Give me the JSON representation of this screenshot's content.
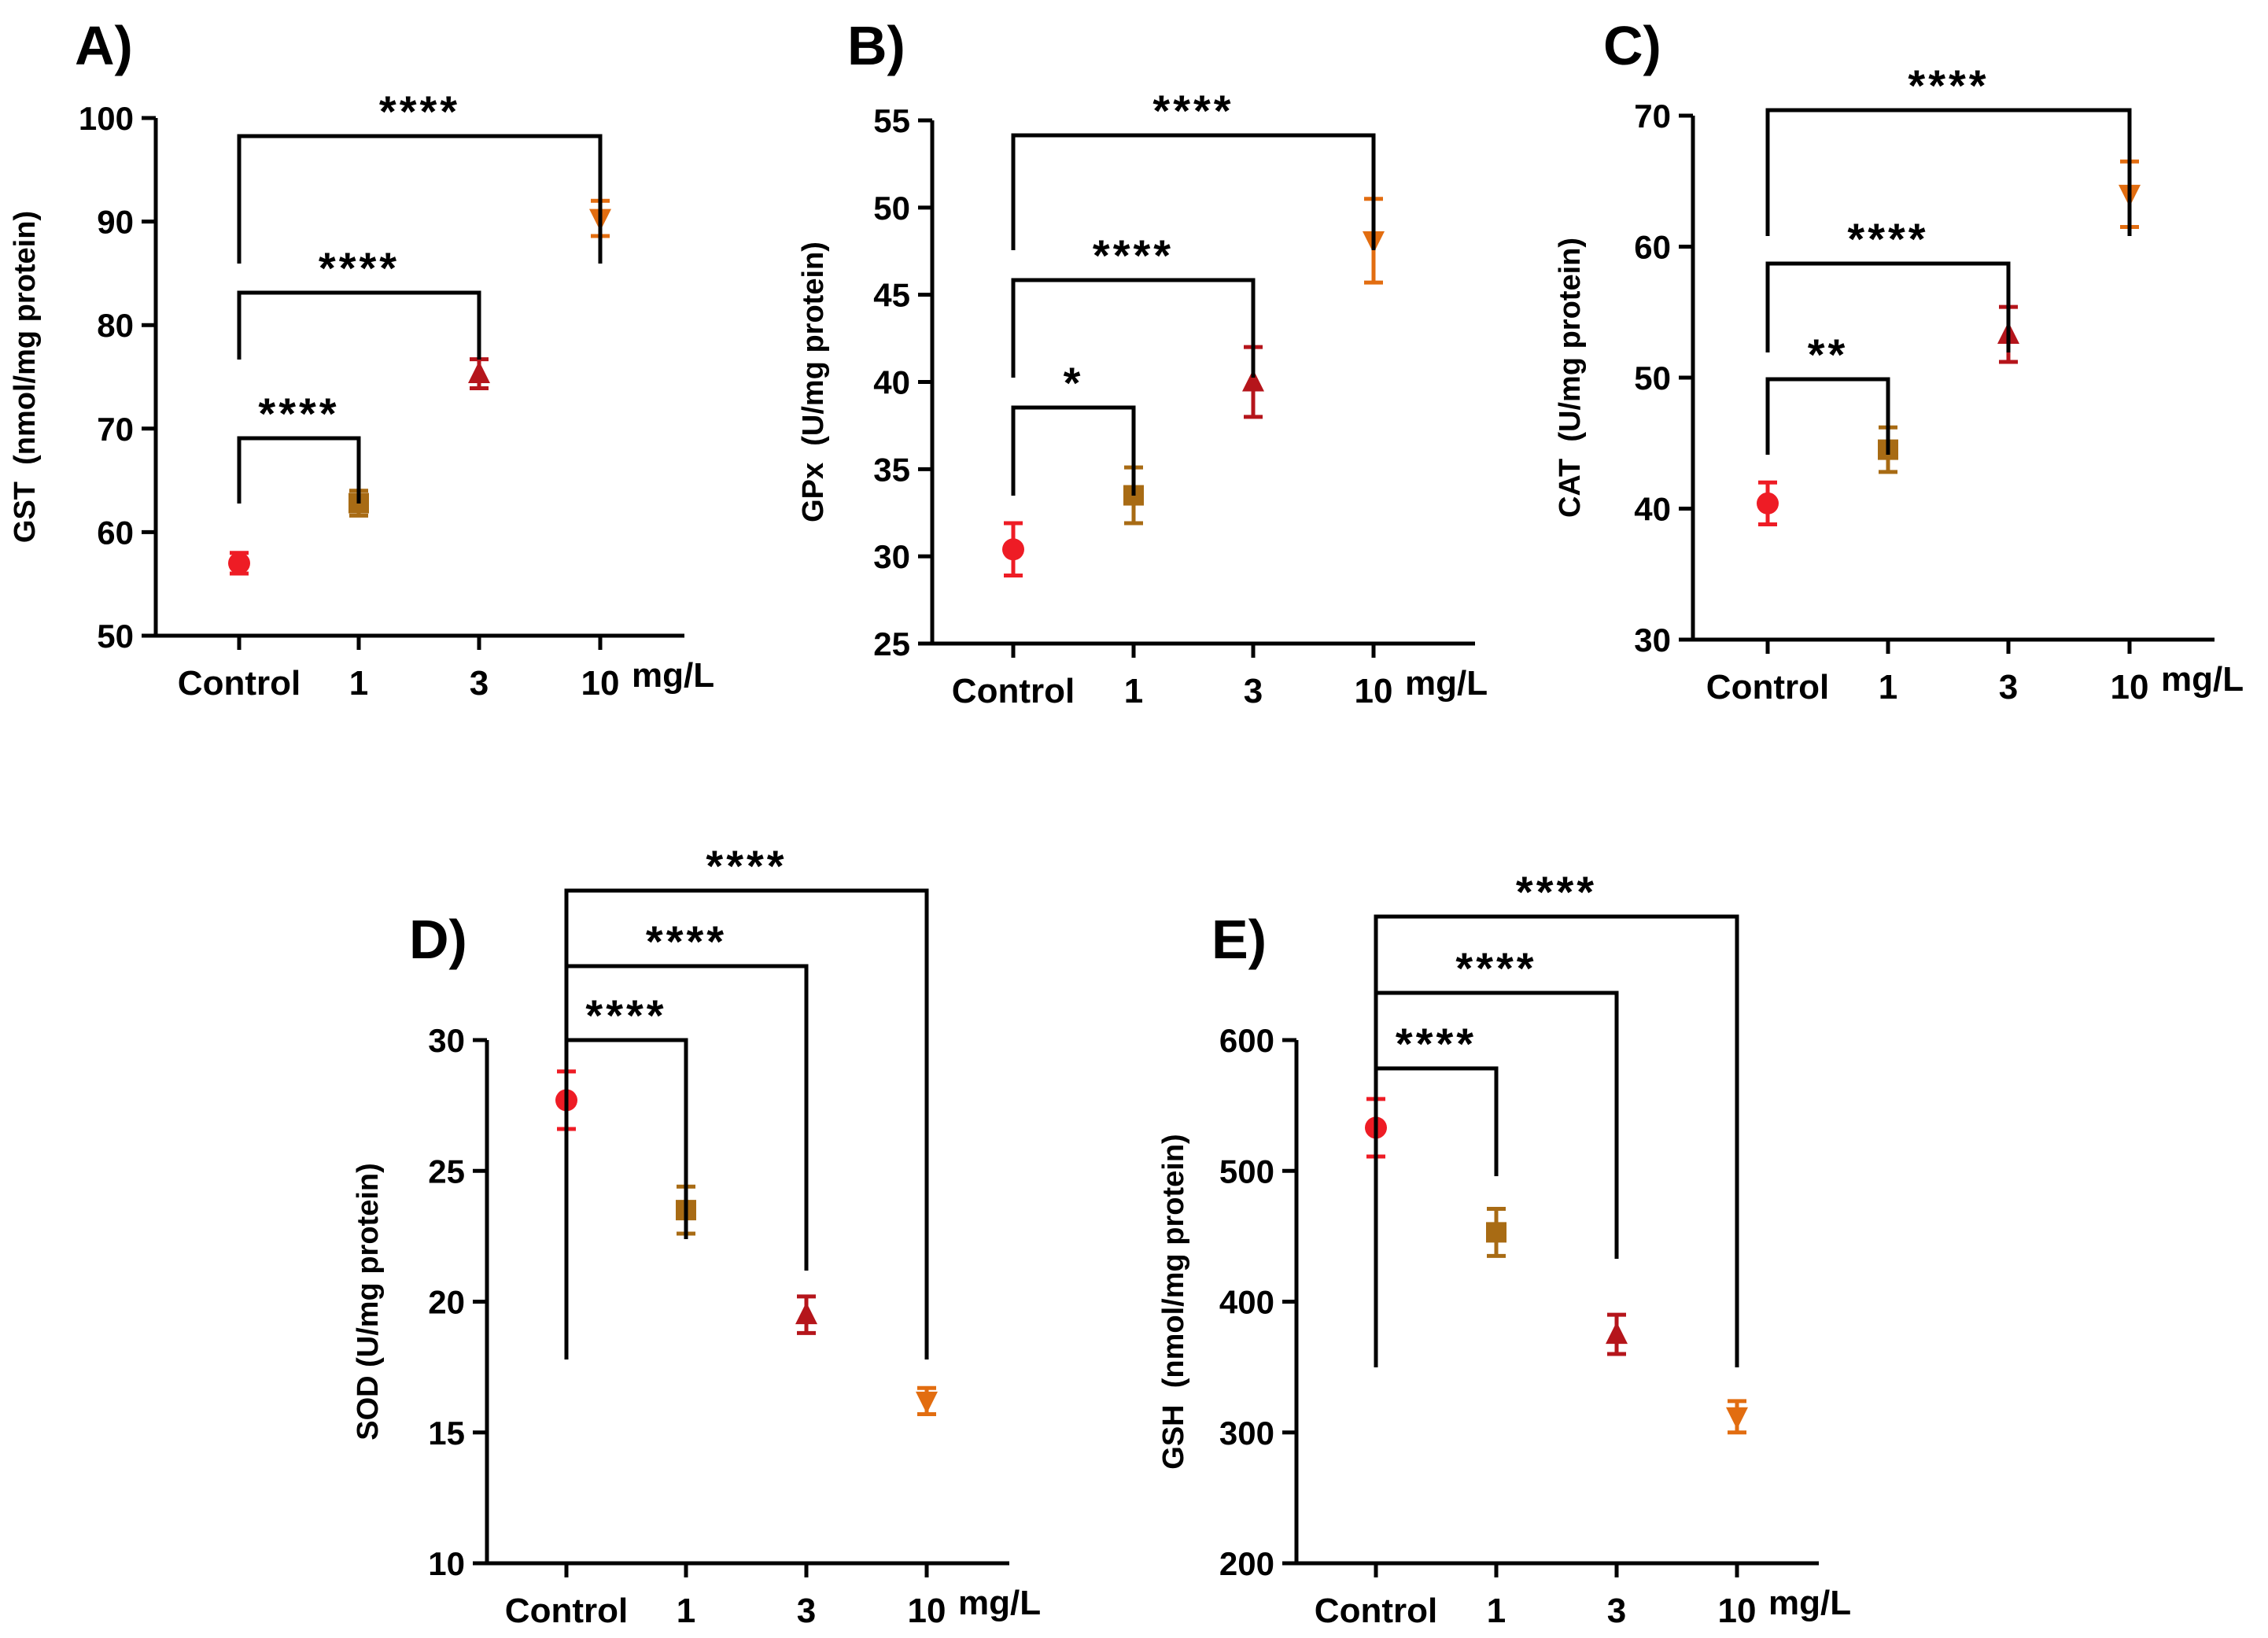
{
  "chart_data": [
    {
      "id": "A",
      "panel_label": "A)",
      "type": "scatter",
      "title": "",
      "ylabel": "GST  (nmol/mg protein)",
      "xlabel": "",
      "x_unit": "mg/L",
      "categories": [
        "Control",
        "1",
        "3",
        "10"
      ],
      "ylim": [
        50,
        100
      ],
      "yticks": [
        50,
        60,
        70,
        80,
        90,
        100
      ],
      "series": [
        {
          "name": "GST",
          "values": [
            57.0,
            62.8,
            75.3,
            90.3
          ],
          "errors": [
            1.0,
            1.2,
            1.4,
            1.7
          ]
        }
      ],
      "significance": [
        {
          "from": "Control",
          "to": "1",
          "label": "****"
        },
        {
          "from": "Control",
          "to": "3",
          "label": "****"
        },
        {
          "from": "Control",
          "to": "10",
          "label": "****"
        }
      ]
    },
    {
      "id": "B",
      "panel_label": "B)",
      "type": "scatter",
      "title": "",
      "ylabel": "GPx  (U/mg protein)",
      "xlabel": "",
      "x_unit": "mg/L",
      "categories": [
        "Control",
        "1",
        "3",
        "10"
      ],
      "ylim": [
        25,
        55
      ],
      "yticks": [
        25,
        30,
        35,
        40,
        45,
        50,
        55
      ],
      "series": [
        {
          "name": "GPx",
          "values": [
            30.4,
            33.5,
            40.0,
            48.1
          ],
          "errors": [
            1.5,
            1.6,
            2.0,
            2.4
          ]
        }
      ],
      "significance": [
        {
          "from": "Control",
          "to": "1",
          "label": "*"
        },
        {
          "from": "Control",
          "to": "3",
          "label": "****"
        },
        {
          "from": "Control",
          "to": "10",
          "label": "****"
        }
      ]
    },
    {
      "id": "C",
      "panel_label": "C)",
      "type": "scatter",
      "title": "",
      "ylabel": "CAT  (U/mg protein)",
      "xlabel": "",
      "x_unit": "mg/L",
      "categories": [
        "Control",
        "1",
        "3",
        "10"
      ],
      "ylim": [
        30,
        70
      ],
      "yticks": [
        30,
        40,
        50,
        60,
        70
      ],
      "series": [
        {
          "name": "CAT",
          "values": [
            40.4,
            44.5,
            53.3,
            64.0
          ],
          "errors": [
            1.6,
            1.7,
            2.1,
            2.5
          ]
        }
      ],
      "significance": [
        {
          "from": "Control",
          "to": "1",
          "label": "**"
        },
        {
          "from": "Control",
          "to": "3",
          "label": "****"
        },
        {
          "from": "Control",
          "to": "10",
          "label": "****"
        }
      ]
    },
    {
      "id": "D",
      "panel_label": "D)",
      "type": "scatter",
      "title": "",
      "ylabel": "SOD (U/mg protein)",
      "xlabel": "",
      "x_unit": "mg/L",
      "categories": [
        "Control",
        "1",
        "3",
        "10"
      ],
      "ylim": [
        10,
        30
      ],
      "yticks": [
        10,
        15,
        20,
        25,
        30
      ],
      "series": [
        {
          "name": "SOD",
          "values": [
            27.7,
            23.5,
            19.5,
            16.2
          ],
          "errors": [
            1.1,
            0.9,
            0.7,
            0.5
          ]
        }
      ],
      "significance": [
        {
          "from": "Control",
          "to": "1",
          "label": "****"
        },
        {
          "from": "Control",
          "to": "3",
          "label": "****"
        },
        {
          "from": "Control",
          "to": "10",
          "label": "****"
        }
      ]
    },
    {
      "id": "E",
      "panel_label": "E)",
      "type": "scatter",
      "title": "",
      "ylabel": "GSH  (nmol/mg protein)",
      "xlabel": "",
      "x_unit": "mg/L",
      "categories": [
        "Control",
        "1",
        "3",
        "10"
      ],
      "ylim": [
        200,
        600
      ],
      "yticks": [
        200,
        300,
        400,
        500,
        600
      ],
      "series": [
        {
          "name": "GSH",
          "values": [
            533,
            453,
            375,
            312
          ],
          "errors": [
            22,
            18,
            15,
            12
          ]
        }
      ],
      "significance": [
        {
          "from": "Control",
          "to": "1",
          "label": "****"
        },
        {
          "from": "Control",
          "to": "3",
          "label": "****"
        },
        {
          "from": "Control",
          "to": "10",
          "label": "****"
        }
      ]
    }
  ],
  "style": {
    "group_colors": [
      "#ee1c25",
      "#a86b14",
      "#b5151b",
      "#e26d10"
    ],
    "markers": [
      "circle",
      "square",
      "triangle-up",
      "triangle-down"
    ],
    "axis_color": "#000000"
  }
}
